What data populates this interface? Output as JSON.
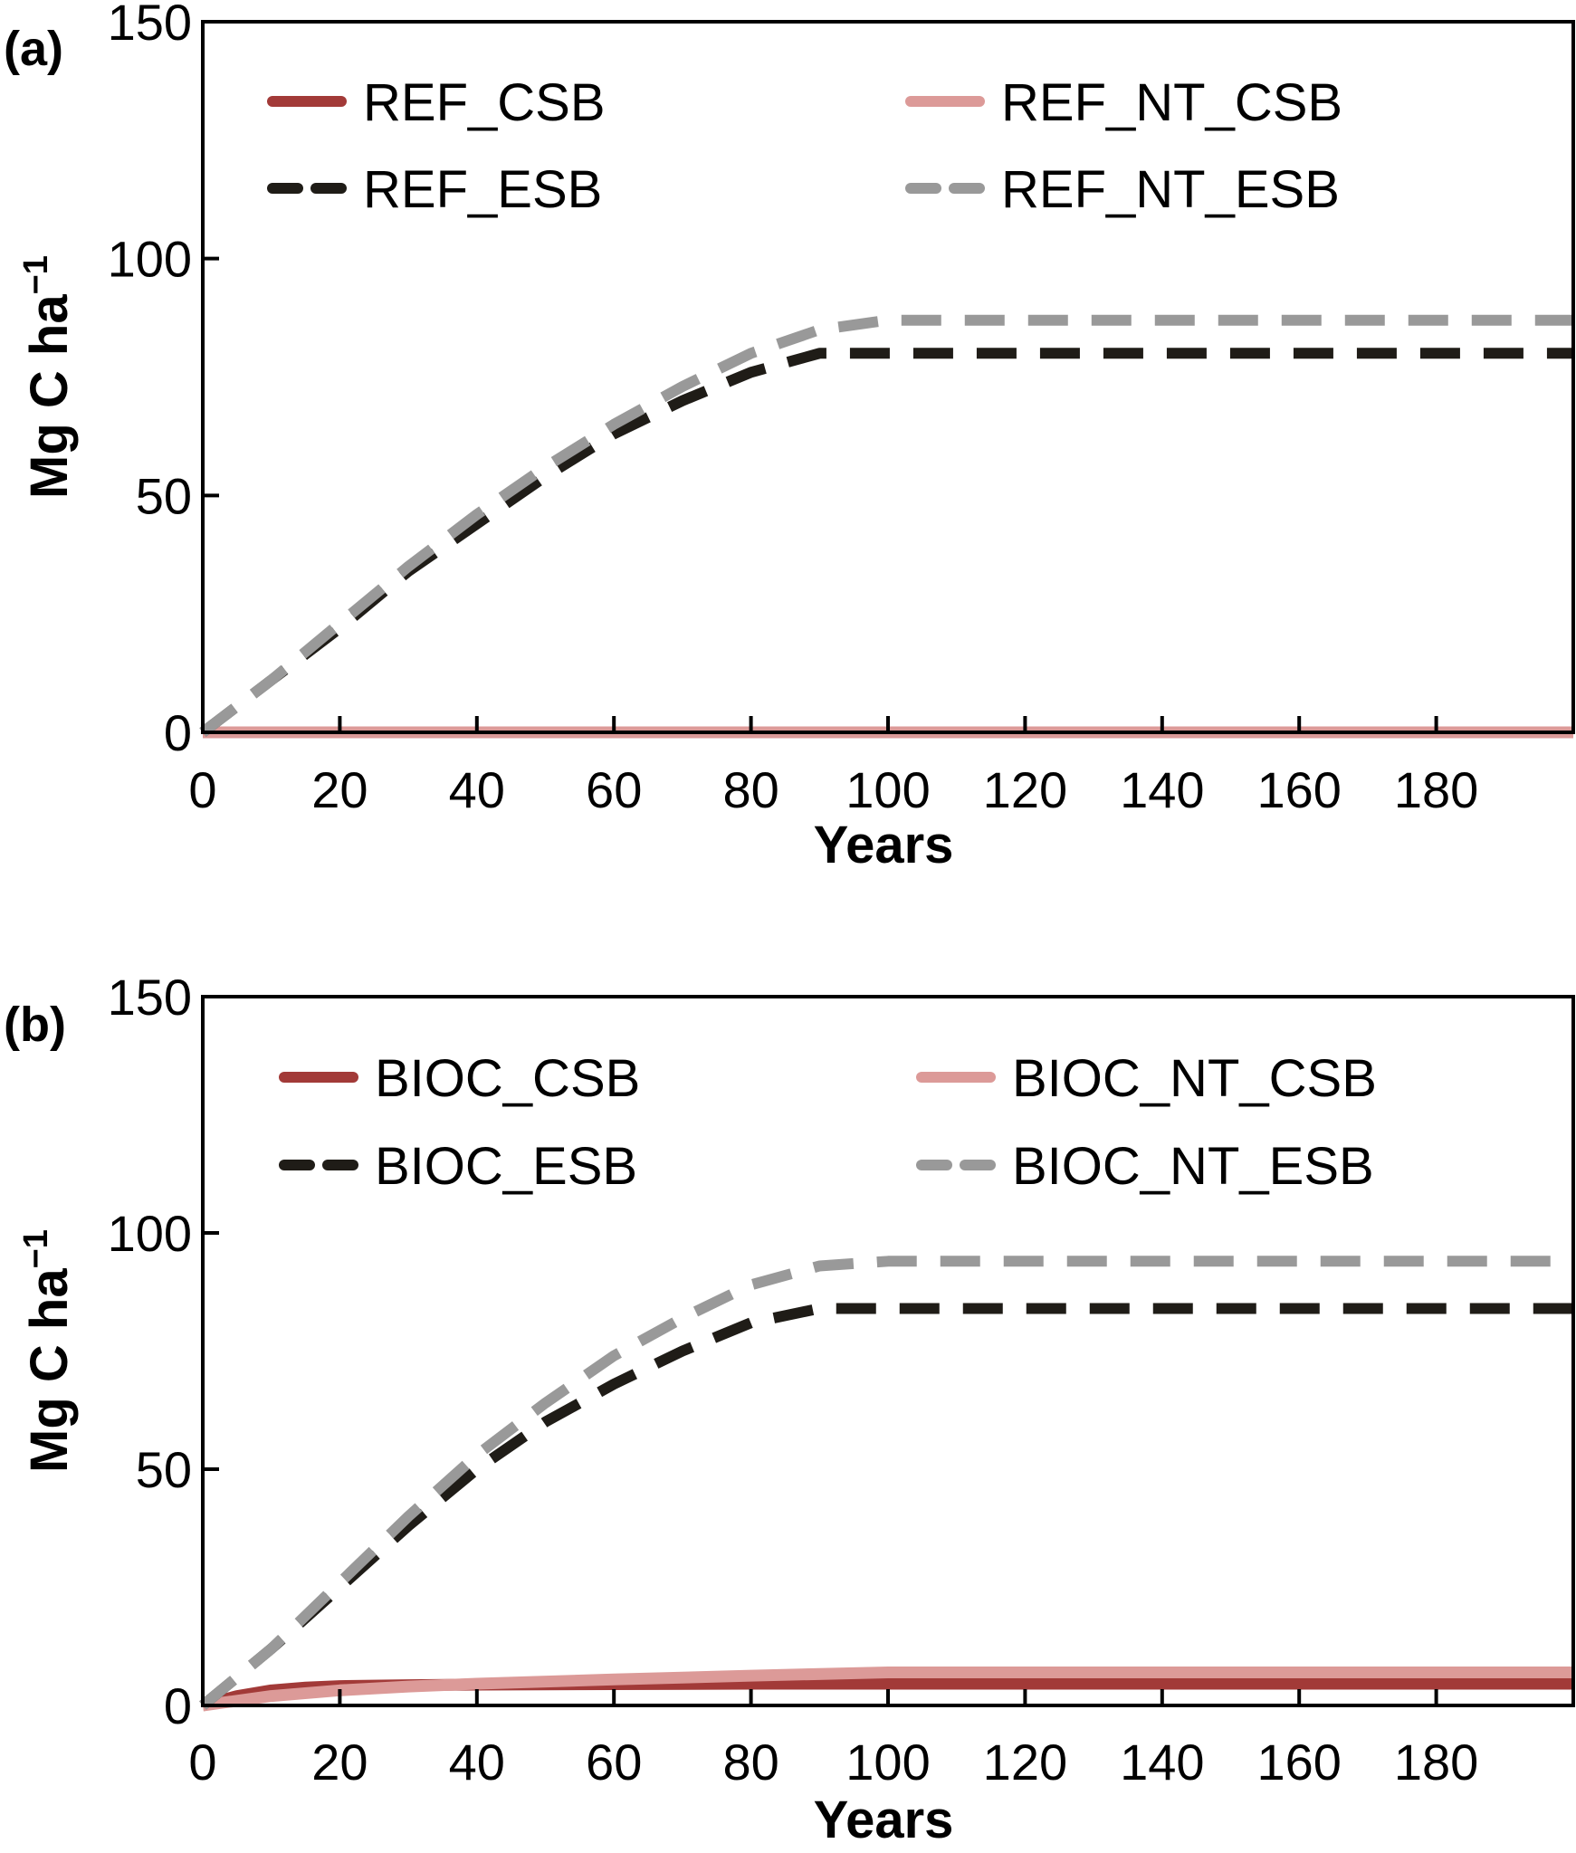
{
  "colors": {
    "csb": "#a23a38",
    "nt_csb": "#dc9a98",
    "esb": "#1f1c17",
    "nt_esb": "#999999"
  },
  "chart_data": [
    {
      "panel_label": "(a)",
      "type": "line",
      "xlabel": "Years",
      "ylabel": "Mg C ha",
      "ylabel_superscript": "−1",
      "xlim": [
        0,
        200
      ],
      "ylim": [
        0,
        150
      ],
      "xticks": [
        0,
        20,
        40,
        60,
        80,
        100,
        120,
        140,
        160,
        180
      ],
      "yticks": [
        0,
        50,
        100,
        150
      ],
      "legend_position": "top",
      "series": [
        {
          "name": "REF_CSB",
          "style": "solid",
          "color_key": "csb",
          "x": [
            0,
            200
          ],
          "y": [
            0,
            0
          ]
        },
        {
          "name": "REF_NT_CSB",
          "style": "solid",
          "color_key": "nt_csb",
          "x": [
            0,
            200
          ],
          "y": [
            0,
            0
          ]
        },
        {
          "name": "REF_ESB",
          "style": "dashed",
          "color_key": "esb",
          "x": [
            0,
            10,
            20,
            30,
            40,
            50,
            60,
            70,
            80,
            90,
            100,
            200
          ],
          "y": [
            0,
            11,
            22,
            34,
            44,
            54,
            63,
            70,
            76,
            80,
            80,
            80
          ]
        },
        {
          "name": "REF_NT_ESB",
          "style": "dashed",
          "color_key": "nt_esb",
          "x": [
            0,
            10,
            20,
            30,
            40,
            50,
            60,
            70,
            80,
            90,
            100,
            200
          ],
          "y": [
            0,
            11,
            23,
            35,
            46,
            56,
            65,
            73,
            80,
            85,
            87,
            87
          ]
        }
      ]
    },
    {
      "panel_label": "(b)",
      "type": "line",
      "xlabel": "Years",
      "ylabel": "Mg C ha",
      "ylabel_superscript": "−1",
      "xlim": [
        0,
        200
      ],
      "ylim": [
        0,
        150
      ],
      "xticks": [
        0,
        20,
        40,
        60,
        80,
        100,
        120,
        140,
        160,
        180
      ],
      "yticks": [
        0,
        50,
        100,
        150
      ],
      "legend_position": "top",
      "series": [
        {
          "name": "BIOC_CSB",
          "style": "solid",
          "color_key": "csb",
          "x": [
            0,
            5,
            10,
            15,
            20,
            30,
            40,
            60,
            80,
            100,
            200
          ],
          "y": [
            0,
            2,
            3.2,
            3.8,
            4.1,
            4.3,
            4.4,
            4.5,
            4.6,
            4.6,
            4.6
          ]
        },
        {
          "name": "BIOC_NT_CSB",
          "style": "solid",
          "color_key": "nt_csb",
          "x": [
            0,
            5,
            10,
            20,
            30,
            40,
            60,
            80,
            100,
            200
          ],
          "y": [
            0,
            1,
            2,
            3.2,
            4,
            4.6,
            5.5,
            6.3,
            7,
            7
          ]
        },
        {
          "name": "BIOC_ESB",
          "style": "dashed",
          "color_key": "esb",
          "x": [
            0,
            10,
            20,
            30,
            40,
            50,
            60,
            70,
            80,
            90,
            100,
            200
          ],
          "y": [
            0,
            12,
            25,
            38,
            50,
            60,
            68,
            75,
            81,
            84,
            84,
            84
          ]
        },
        {
          "name": "BIOC_NT_ESB",
          "style": "dashed",
          "color_key": "nt_esb",
          "x": [
            0,
            10,
            20,
            30,
            40,
            50,
            60,
            70,
            80,
            90,
            100,
            200
          ],
          "y": [
            0,
            12,
            26,
            40,
            53,
            64,
            74,
            82,
            89,
            93,
            94,
            94
          ]
        }
      ]
    }
  ]
}
